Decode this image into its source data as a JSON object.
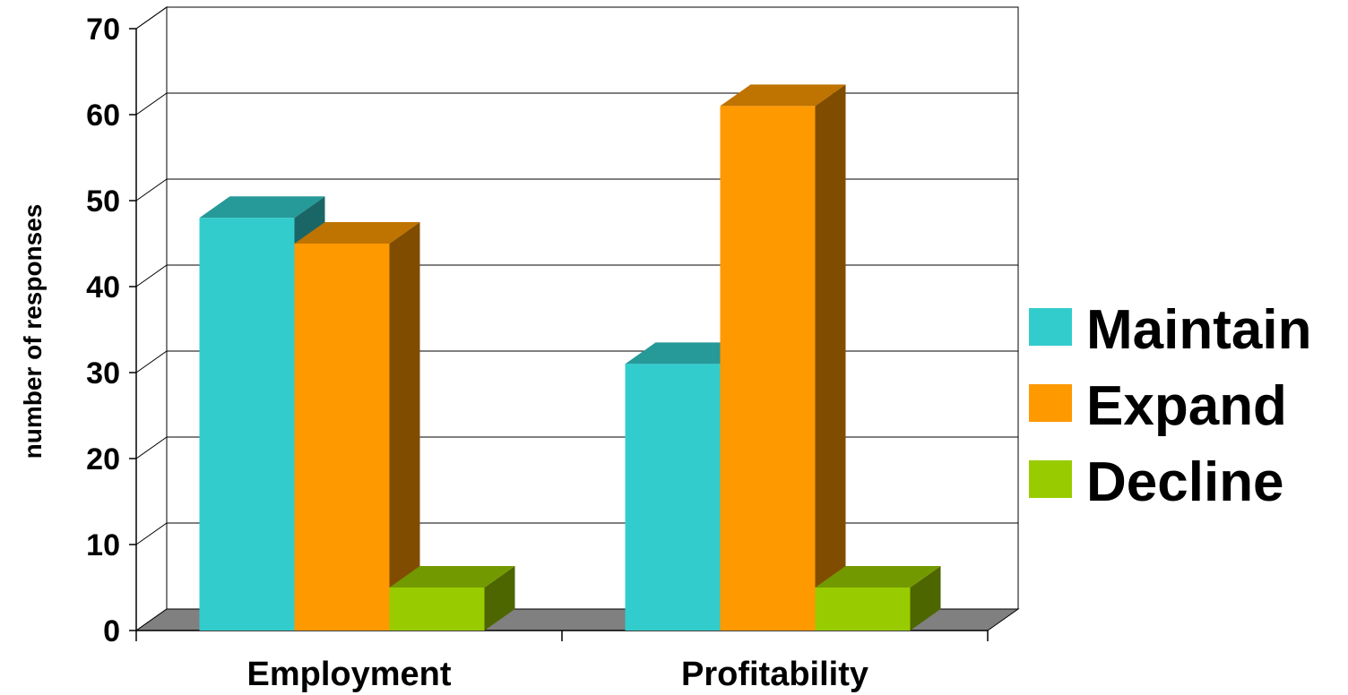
{
  "chart_data": {
    "type": "bar",
    "categories": [
      "Employment",
      "Profitability"
    ],
    "series": [
      {
        "name": "Maintain",
        "values": [
          48,
          31
        ],
        "color": "#33CCCC"
      },
      {
        "name": "Expand",
        "values": [
          45,
          61
        ],
        "color": "#FF9900"
      },
      {
        "name": "Decline",
        "values": [
          5,
          5
        ],
        "color": "#99CC00"
      }
    ],
    "yticks": [
      "0",
      "10",
      "20",
      "30",
      "40",
      "50",
      "60",
      "70"
    ],
    "ylabel": "number of responses",
    "xlabel": "",
    "title": "",
    "ylim": [
      0,
      70
    ],
    "grid": true,
    "legend_position": "right",
    "three_d": true
  }
}
